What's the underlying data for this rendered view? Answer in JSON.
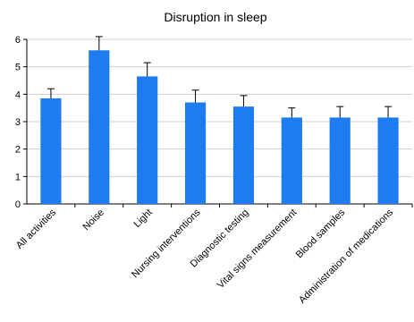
{
  "chart_data": {
    "type": "bar",
    "title": "Disruption in sleep",
    "xlabel": "",
    "ylabel": "",
    "ylim": [
      0,
      6
    ],
    "yticks": [
      0,
      1,
      2,
      3,
      4,
      5,
      6
    ],
    "grid": true,
    "bar_color": "#1e7bf0",
    "categories": [
      "All activities",
      "Noise",
      "Light",
      "Nursing interventions",
      "Diagnostic testing",
      "Vital signs measurement",
      "Blood samples",
      "Administration of medications"
    ],
    "values": [
      3.85,
      5.6,
      4.65,
      3.7,
      3.55,
      3.15,
      3.15,
      3.15
    ],
    "error": [
      0.35,
      0.5,
      0.5,
      0.45,
      0.4,
      0.35,
      0.4,
      0.4
    ]
  }
}
